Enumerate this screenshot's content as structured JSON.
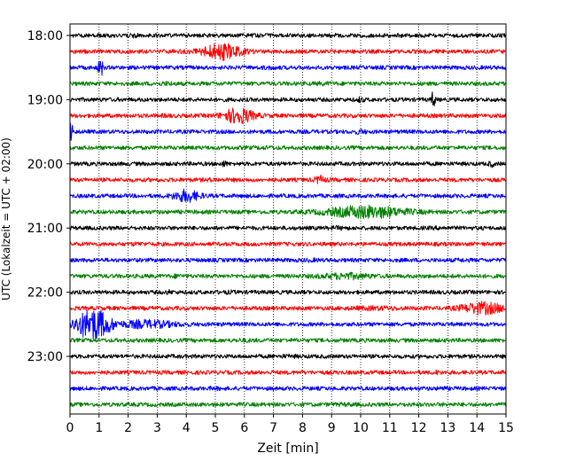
{
  "chart_data": {
    "type": "line",
    "subtype": "helicorder",
    "title": "",
    "xlabel": "Zeit  [min]",
    "ylabel": "UTC (Lokalzeit = UTC + 02:00)",
    "xlim": [
      0,
      15
    ],
    "x_ticks": [
      "0",
      "1",
      "2",
      "3",
      "4",
      "5",
      "6",
      "7",
      "8",
      "9",
      "10",
      "11",
      "12",
      "13",
      "14",
      "15"
    ],
    "y_ticks": [
      "18:00",
      "19:00",
      "20:00",
      "21:00",
      "22:00",
      "23:00"
    ],
    "grid": "vertical-dotted",
    "trace_colors": [
      "#000000",
      "#ff0000",
      "#0000ff",
      "#008000"
    ],
    "lines_per_hour": 4,
    "traces": [
      {
        "start": "18:00",
        "events": [
          {
            "t": 2.1,
            "a": 1.4,
            "w": 0.4
          },
          {
            "t": 9.0,
            "a": 1.2,
            "w": 0.3
          }
        ]
      },
      {
        "start": "18:15",
        "events": [
          {
            "t": 5.2,
            "a": 4.5,
            "w": 1.2
          }
        ]
      },
      {
        "start": "18:30",
        "events": [
          {
            "t": 1.05,
            "a": 7.0,
            "w": 0.12
          },
          {
            "t": 6.9,
            "a": 1.3,
            "w": 0.5
          }
        ]
      },
      {
        "start": "18:45",
        "events": [
          {
            "t": 3.3,
            "a": 1.3,
            "w": 0.6
          },
          {
            "t": 8.7,
            "a": 1.2,
            "w": 0.5
          }
        ]
      },
      {
        "start": "19:00",
        "events": [
          {
            "t": 10.0,
            "a": 2.0,
            "w": 0.15
          },
          {
            "t": 12.5,
            "a": 5.5,
            "w": 0.1
          }
        ]
      },
      {
        "start": "19:15",
        "events": [
          {
            "t": 5.8,
            "a": 4.5,
            "w": 0.9
          },
          {
            "t": 3.3,
            "a": 1.2,
            "w": 0.4
          }
        ]
      },
      {
        "start": "19:30",
        "events": [
          {
            "t": 0.05,
            "a": 6.0,
            "w": 0.12
          },
          {
            "t": 10.0,
            "a": 1.6,
            "w": 0.3
          }
        ]
      },
      {
        "start": "19:45",
        "events": [
          {
            "t": 6.8,
            "a": 1.2,
            "w": 0.5
          }
        ]
      },
      {
        "start": "20:00",
        "events": [
          {
            "t": 5.3,
            "a": 2.0,
            "w": 0.15
          },
          {
            "t": 14.5,
            "a": 2.0,
            "w": 0.15
          }
        ]
      },
      {
        "start": "20:15",
        "events": [
          {
            "t": 8.6,
            "a": 2.5,
            "w": 0.3
          },
          {
            "t": 4.9,
            "a": 1.3,
            "w": 0.3
          }
        ]
      },
      {
        "start": "20:30",
        "events": [
          {
            "t": 4.0,
            "a": 3.5,
            "w": 0.8
          }
        ]
      },
      {
        "start": "20:45",
        "events": [
          {
            "t": 10.2,
            "a": 3.6,
            "w": 2.4
          }
        ]
      },
      {
        "start": "21:00",
        "events": [
          {
            "t": 9.2,
            "a": 1.3,
            "w": 0.5
          },
          {
            "t": 12.8,
            "a": 1.2,
            "w": 0.4
          }
        ]
      },
      {
        "start": "21:15",
        "events": [
          {
            "t": 2.3,
            "a": 1.2,
            "w": 0.5
          }
        ]
      },
      {
        "start": "21:30",
        "events": [
          {
            "t": 8.3,
            "a": 1.2,
            "w": 0.5
          },
          {
            "t": 13.5,
            "a": 1.2,
            "w": 0.4
          }
        ]
      },
      {
        "start": "21:45",
        "events": [
          {
            "t": 9.5,
            "a": 2.0,
            "w": 1.5
          },
          {
            "t": 3.7,
            "a": 1.5,
            "w": 0.2
          }
        ]
      },
      {
        "start": "22:00",
        "events": [
          {
            "t": 3.4,
            "a": 1.5,
            "w": 0.2
          },
          {
            "t": 5.5,
            "a": 1.2,
            "w": 0.4
          }
        ]
      },
      {
        "start": "22:15",
        "events": [
          {
            "t": 14.2,
            "a": 3.5,
            "w": 1.3
          },
          {
            "t": 10.5,
            "a": 1.4,
            "w": 1.5
          }
        ]
      },
      {
        "start": "22:30",
        "events": [
          {
            "t": 0.8,
            "a": 8.5,
            "w": 1.1
          },
          {
            "t": 2.6,
            "a": 2.5,
            "w": 1.8
          }
        ]
      },
      {
        "start": "22:45",
        "events": [
          {
            "t": 6.0,
            "a": 1.2,
            "w": 0.6
          }
        ]
      },
      {
        "start": "23:00",
        "events": [
          {
            "t": 7.5,
            "a": 1.2,
            "w": 0.6
          }
        ]
      },
      {
        "start": "23:15",
        "events": [
          {
            "t": 12.6,
            "a": 1.5,
            "w": 0.2
          }
        ]
      },
      {
        "start": "23:30",
        "events": [
          {
            "t": 12.8,
            "a": 1.4,
            "w": 0.2
          },
          {
            "t": 5.0,
            "a": 1.2,
            "w": 0.4
          }
        ]
      },
      {
        "start": "23:45",
        "events": [
          {
            "t": 9.5,
            "a": 1.2,
            "w": 0.6
          }
        ]
      }
    ]
  }
}
